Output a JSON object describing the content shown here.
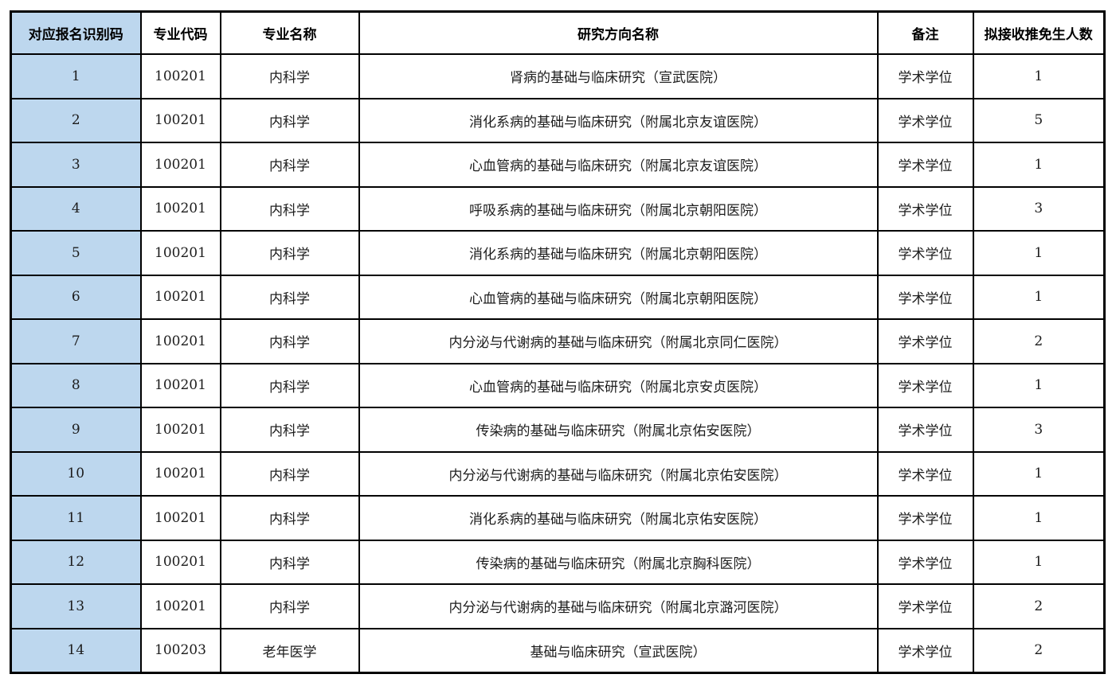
{
  "colors": {
    "first_column_bg": "#bdd7ee",
    "grid_border": "#000000",
    "text": "#1c1c1c",
    "page_bg": "#ffffff"
  },
  "table": {
    "columns": [
      "对应报名识别码",
      "专业代码",
      "专业名称",
      "研究方向名称",
      "备注",
      "拟接收推免生人数"
    ],
    "rows": [
      [
        "1",
        "100201",
        "内科学",
        "肾病的基础与临床研究（宣武医院）",
        "学术学位",
        "1"
      ],
      [
        "2",
        "100201",
        "内科学",
        "消化系病的基础与临床研究（附属北京友谊医院）",
        "学术学位",
        "5"
      ],
      [
        "3",
        "100201",
        "内科学",
        "心血管病的基础与临床研究（附属北京友谊医院）",
        "学术学位",
        "1"
      ],
      [
        "4",
        "100201",
        "内科学",
        "呼吸系病的基础与临床研究（附属北京朝阳医院）",
        "学术学位",
        "3"
      ],
      [
        "5",
        "100201",
        "内科学",
        "消化系病的基础与临床研究（附属北京朝阳医院）",
        "学术学位",
        "1"
      ],
      [
        "6",
        "100201",
        "内科学",
        "心血管病的基础与临床研究（附属北京朝阳医院）",
        "学术学位",
        "1"
      ],
      [
        "7",
        "100201",
        "内科学",
        "内分泌与代谢病的基础与临床研究（附属北京同仁医院）",
        "学术学位",
        "2"
      ],
      [
        "8",
        "100201",
        "内科学",
        "心血管病的基础与临床研究（附属北京安贞医院）",
        "学术学位",
        "1"
      ],
      [
        "9",
        "100201",
        "内科学",
        "传染病的基础与临床研究（附属北京佑安医院）",
        "学术学位",
        "3"
      ],
      [
        "10",
        "100201",
        "内科学",
        "内分泌与代谢病的基础与临床研究（附属北京佑安医院）",
        "学术学位",
        "1"
      ],
      [
        "11",
        "100201",
        "内科学",
        "消化系病的基础与临床研究（附属北京佑安医院）",
        "学术学位",
        "1"
      ],
      [
        "12",
        "100201",
        "内科学",
        "传染病的基础与临床研究（附属北京胸科医院）",
        "学术学位",
        "1"
      ],
      [
        "13",
        "100201",
        "内科学",
        "内分泌与代谢病的基础与临床研究（附属北京潞河医院）",
        "学术学位",
        "2"
      ],
      [
        "14",
        "100203",
        "老年医学",
        "基础与临床研究（宣武医院）",
        "学术学位",
        "2"
      ]
    ]
  }
}
